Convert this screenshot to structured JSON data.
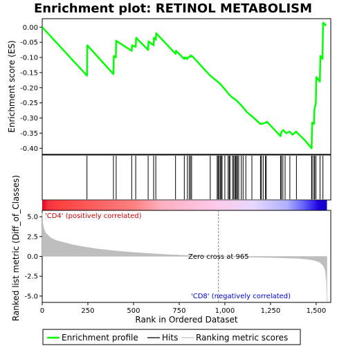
{
  "title": "Enrichment plot: RETINOL METABOLISM",
  "colors": {
    "enrichment_line": "#00ff00",
    "hit_line": "#000000",
    "metric_fill": "#bebebe",
    "positive_text": "#cc0000",
    "negative_text": "#0000cc"
  },
  "chart_data": [
    {
      "type": "line",
      "panel": "enrichment",
      "ylabel": "Enrichment score (ES)",
      "xlim": [
        0,
        1580
      ],
      "ylim": [
        -0.42,
        0.0
      ],
      "y_ticks": [
        "0.00",
        "-0.05",
        "-0.10",
        "-0.15",
        "-0.20",
        "-0.25",
        "-0.30",
        "-0.35",
        "-0.40"
      ],
      "series": [
        {
          "name": "Enrichment profile",
          "x": [
            0,
            245,
            247,
            390,
            392,
            403,
            405,
            490,
            492,
            512,
            514,
            580,
            582,
            610,
            612,
            622,
            624,
            730,
            732,
            778,
            780,
            795,
            797,
            810,
            812,
            818,
            820,
            920,
            960,
            965,
            975,
            985,
            1000,
            1020,
            1040,
            1060,
            1080,
            1100,
            1120,
            1150,
            1195,
            1210,
            1225,
            1230,
            1305,
            1310,
            1320,
            1335,
            1355,
            1370,
            1390,
            1440,
            1475,
            1478,
            1488,
            1491,
            1498,
            1501,
            1520,
            1523,
            1535,
            1538,
            1555
          ],
          "y": [
            0.0,
            -0.16,
            -0.06,
            -0.155,
            -0.095,
            -0.1,
            -0.045,
            -0.078,
            -0.06,
            -0.065,
            -0.035,
            -0.075,
            -0.047,
            -0.06,
            -0.035,
            -0.042,
            -0.02,
            -0.088,
            -0.078,
            -0.105,
            -0.1,
            -0.105,
            -0.1,
            -0.098,
            -0.093,
            -0.097,
            -0.095,
            -0.16,
            -0.18,
            -0.182,
            -0.188,
            -0.195,
            -0.205,
            -0.22,
            -0.232,
            -0.24,
            -0.252,
            -0.265,
            -0.28,
            -0.295,
            -0.32,
            -0.318,
            -0.315,
            -0.312,
            -0.36,
            -0.345,
            -0.34,
            -0.35,
            -0.345,
            -0.355,
            -0.345,
            -0.375,
            -0.4,
            -0.315,
            -0.32,
            -0.27,
            -0.25,
            -0.165,
            -0.18,
            -0.095,
            -0.105,
            0.015,
            0.005
          ]
        }
      ]
    },
    {
      "type": "scatter",
      "panel": "hits",
      "series": [
        {
          "name": "Hits",
          "x": [
            245,
            390,
            405,
            490,
            512,
            580,
            610,
            622,
            730,
            778,
            795,
            805,
            812,
            818,
            920,
            958,
            963,
            968,
            975,
            980,
            985,
            1000,
            1018,
            1024,
            1028,
            1042,
            1048,
            1055,
            1060,
            1064,
            1070,
            1076,
            1090,
            1100,
            1115,
            1148,
            1195,
            1200,
            1210,
            1222,
            1227,
            1305,
            1310,
            1318,
            1330,
            1356,
            1392,
            1475,
            1478,
            1488,
            1492,
            1499,
            1521,
            1537
          ]
        }
      ]
    },
    {
      "type": "area",
      "panel": "ranking",
      "xlabel": "Rank in Ordered Dataset",
      "ylabel": "Ranked list metric (Diff_of_Classes)",
      "xlim": [
        0,
        1580
      ],
      "ylim": [
        -5.8,
        5.8
      ],
      "x_ticks": [
        "0",
        "250",
        "500",
        "750",
        "1,000",
        "1,250",
        "1,500"
      ],
      "y_ticks": [
        "5.0",
        "2.5",
        "0.0",
        "-2.5",
        "-5.0"
      ],
      "series": [
        {
          "name": "Ranking metric scores",
          "x": [
            0,
            3,
            8,
            15,
            30,
            50,
            80,
            120,
            170,
            230,
            300,
            400,
            500,
            600,
            700,
            800,
            900,
            965,
            1050,
            1150,
            1250,
            1330,
            1400,
            1450,
            1490,
            1520,
            1540,
            1550,
            1556,
            1559
          ],
          "y": [
            5.5,
            4.3,
            3.6,
            3.1,
            2.7,
            2.3,
            2.0,
            1.75,
            1.45,
            1.2,
            0.95,
            0.7,
            0.5,
            0.35,
            0.22,
            0.12,
            0.05,
            0.0,
            -0.05,
            -0.1,
            -0.15,
            -0.2,
            -0.25,
            -0.35,
            -0.5,
            -0.75,
            -1.2,
            -1.8,
            -3.2,
            -5.7
          ]
        }
      ],
      "annotations": {
        "positive": "'CD4' (positively correlated)",
        "negative": "'CD8' (negatively correlated)",
        "zero_cross": "Zero cross at 965"
      }
    }
  ],
  "legend": {
    "items": [
      {
        "label": "Enrichment profile",
        "style": "green-line"
      },
      {
        "label": "Hits",
        "style": "black-line"
      },
      {
        "label": "Ranking metric scores",
        "style": "gray-line"
      }
    ]
  }
}
